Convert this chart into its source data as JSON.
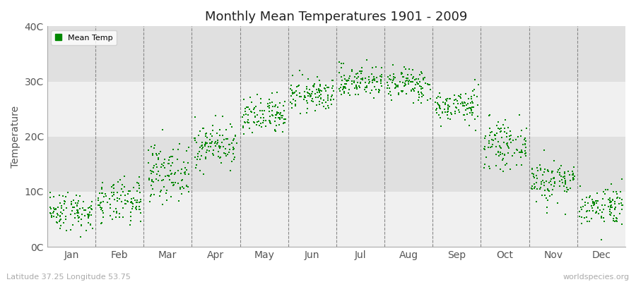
{
  "title": "Monthly Mean Temperatures 1901 - 2009",
  "ylabel": "Temperature",
  "xlabel_labels": [
    "Jan",
    "Feb",
    "Mar",
    "Apr",
    "May",
    "Jun",
    "Jul",
    "Aug",
    "Sep",
    "Oct",
    "Nov",
    "Dec"
  ],
  "ytick_labels": [
    "0C",
    "10C",
    "20C",
    "30C",
    "40C"
  ],
  "ytick_values": [
    0,
    10,
    20,
    30,
    40
  ],
  "legend_label": "Mean Temp",
  "marker_color": "#008800",
  "plot_bg_color": "#ffffff",
  "fig_bg_color": "#ffffff",
  "band_color_light": "#f0f0f0",
  "band_color_dark": "#e0e0e0",
  "footer_left": "Latitude 37.25 Longitude 53.75",
  "footer_right": "worldspecies.org",
  "monthly_means": [
    6.5,
    8.0,
    13.5,
    18.5,
    23.5,
    27.5,
    30.0,
    29.5,
    25.5,
    18.5,
    12.0,
    7.5
  ],
  "monthly_stds": [
    1.8,
    2.0,
    2.5,
    2.0,
    1.8,
    1.5,
    1.5,
    1.5,
    1.5,
    2.0,
    2.0,
    1.8
  ],
  "n_years": 109,
  "ylim": [
    0,
    40
  ],
  "figsize": [
    9.0,
    4.0
  ],
  "dpi": 100
}
